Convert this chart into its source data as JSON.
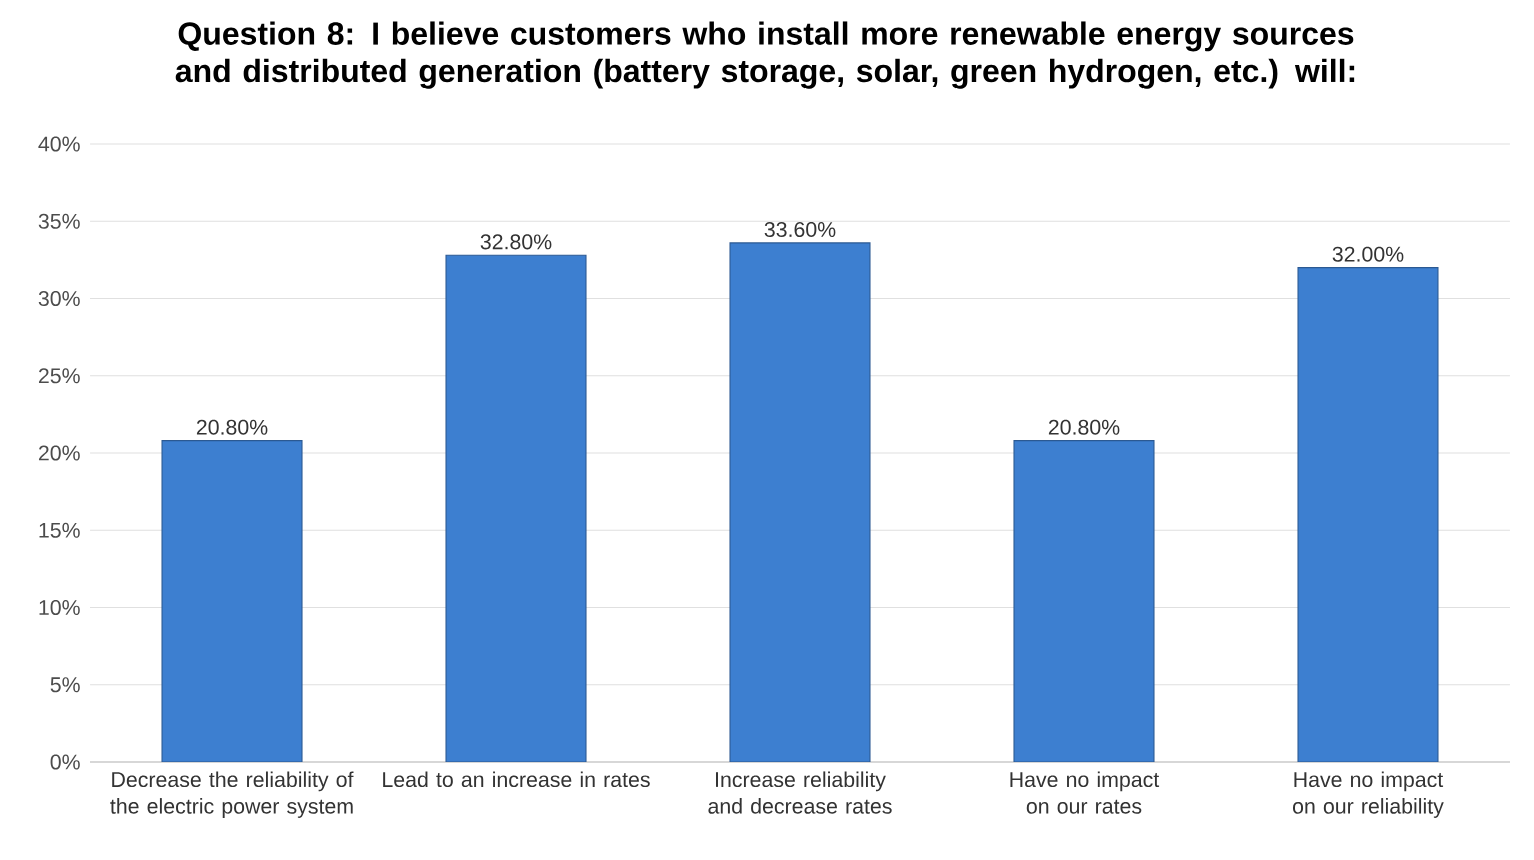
{
  "chart_data": {
    "type": "bar",
    "title": "Question 8: I believe customers who install more renewable energy sources and distributed generation (battery storage, solar, green hydrogen, etc.) will:",
    "categories": [
      "Decrease the reliability of the electric power system",
      "Lead to an increase in rates",
      "Increase reliability and decrease rates",
      "Have no impact on our rates",
      "Have no impact on our reliability"
    ],
    "values": [
      20.8,
      32.8,
      33.6,
      20.8,
      32.0
    ],
    "value_labels": [
      "20.80%",
      "32.80%",
      "33.60%",
      "20.80%",
      "32.00%"
    ],
    "color": "#3d7fd0",
    "ylim": [
      0,
      40
    ],
    "yticks": [
      {
        "value": 0,
        "label": "0%"
      },
      {
        "value": 5,
        "label": "5%"
      },
      {
        "value": 10,
        "label": "10%"
      },
      {
        "value": 15,
        "label": "15%"
      },
      {
        "value": 20,
        "label": "20%"
      },
      {
        "value": 25,
        "label": "25%"
      },
      {
        "value": 30,
        "label": "30%"
      },
      {
        "value": 35,
        "label": "35%"
      },
      {
        "value": 40,
        "label": "40%"
      }
    ],
    "grid": "y"
  }
}
